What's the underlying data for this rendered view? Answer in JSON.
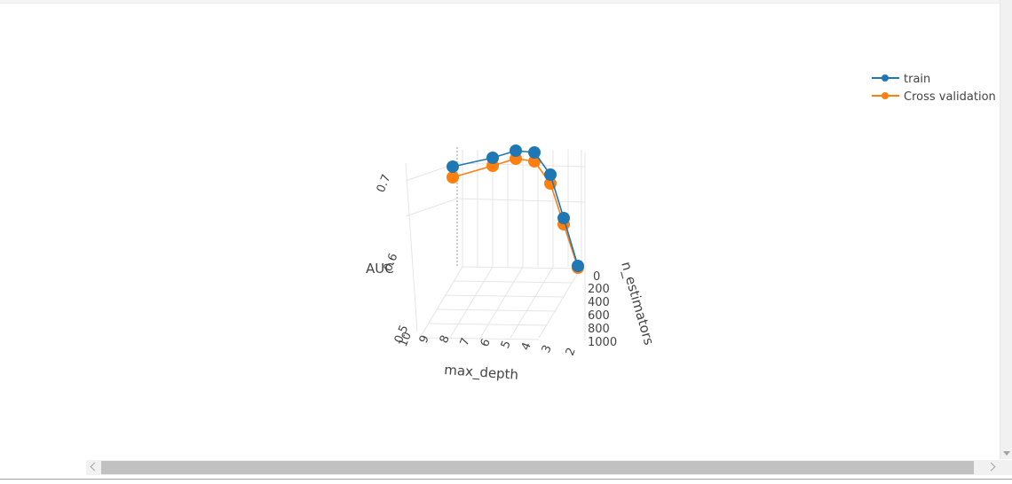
{
  "colors": {
    "train": "#1f77b4",
    "cv": "#ff7f0e",
    "grid": "#e5e5e5"
  },
  "chart_data": {
    "type": "line3d",
    "x_axis": {
      "title": "max_depth",
      "ticks": [
        "10",
        "9",
        "8",
        "7",
        "6",
        "5",
        "4",
        "3",
        "2"
      ]
    },
    "y_axis": {
      "title": "n_estimators",
      "ticks": [
        "0",
        "200",
        "400",
        "600",
        "800",
        "1000"
      ]
    },
    "z_axis": {
      "title": "AUC",
      "ticks": [
        "0.5",
        "0.6",
        "0.7"
      ],
      "range": [
        0.5,
        0.73
      ]
    },
    "legend": {
      "position": "top-right",
      "entries": [
        "train",
        "Cross validation"
      ]
    },
    "series": [
      {
        "name": "train",
        "points": [
          {
            "max_depth": 10,
            "n_estimators": 1000,
            "auc": 0.709
          },
          {
            "max_depth": 8,
            "n_estimators": 1000,
            "auc": 0.714
          },
          {
            "max_depth": 6,
            "n_estimators": 1000,
            "auc": 0.716
          },
          {
            "max_depth": 5,
            "n_estimators": 1000,
            "auc": 0.714
          },
          {
            "max_depth": 4,
            "n_estimators": 1000,
            "auc": 0.699
          },
          {
            "max_depth": 3,
            "n_estimators": 1000,
            "auc": 0.655
          },
          {
            "max_depth": 2,
            "n_estimators": 1000,
            "auc": 0.602
          }
        ]
      },
      {
        "name": "Cross validation",
        "points": [
          {
            "max_depth": 10,
            "n_estimators": 1000,
            "auc": 0.698
          },
          {
            "max_depth": 8,
            "n_estimators": 1000,
            "auc": 0.704
          },
          {
            "max_depth": 6,
            "n_estimators": 1000,
            "auc": 0.707
          },
          {
            "max_depth": 5,
            "n_estimators": 1000,
            "auc": 0.704
          },
          {
            "max_depth": 4,
            "n_estimators": 1000,
            "auc": 0.689
          },
          {
            "max_depth": 3,
            "n_estimators": 1000,
            "auc": 0.648
          },
          {
            "max_depth": 2,
            "n_estimators": 1000,
            "auc": 0.6
          }
        ]
      }
    ]
  }
}
